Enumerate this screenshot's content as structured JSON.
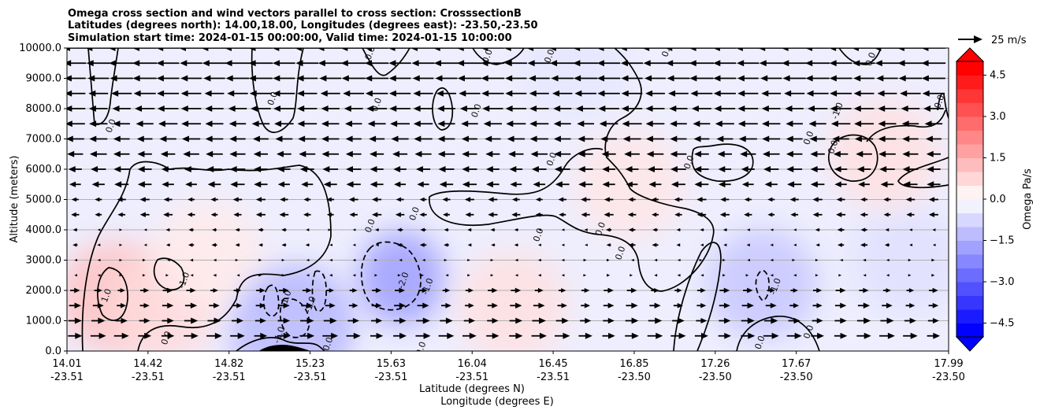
{
  "chart_data": {
    "type": "heatmap",
    "title_lines": [
      "Omega cross section and wind vectors parallel to cross section: CrosssectionB",
      "Latitudes (degrees north): 14.00,18.00, Longitudes (degrees east): -23.50,-23.50",
      "Simulation start time: 2024-01-15 00:00:00, Valid time: 2024-01-15 10:00:00"
    ],
    "xlabel_lines": [
      "Latitude (degrees N)",
      "Longitude (degrees E)"
    ],
    "ylabel": "Altitude (meters)",
    "x_ticks": [
      {
        "lat": "14.01",
        "lon": "-23.51"
      },
      {
        "lat": "14.42",
        "lon": "-23.51"
      },
      {
        "lat": "14.82",
        "lon": "-23.51"
      },
      {
        "lat": "15.23",
        "lon": "-23.51"
      },
      {
        "lat": "15.63",
        "lon": "-23.51"
      },
      {
        "lat": "16.04",
        "lon": "-23.51"
      },
      {
        "lat": "16.45",
        "lon": "-23.51"
      },
      {
        "lat": "16.85",
        "lon": "-23.50"
      },
      {
        "lat": "17.26",
        "lon": "-23.50"
      },
      {
        "lat": "17.67",
        "lon": "-23.50"
      },
      {
        "lat": "17.99",
        "lon": "-23.50"
      }
    ],
    "xlim": [
      14.01,
      17.99
    ],
    "ylim": [
      0,
      10000
    ],
    "y_ticks": [
      0,
      1000,
      2000,
      3000,
      4000,
      5000,
      6000,
      7000,
      8000,
      9000,
      10000
    ],
    "y_tick_labels": [
      "0.0",
      "1000.0",
      "2000.0",
      "3000.0",
      "4000.0",
      "5000.0",
      "6000.0",
      "7000.0",
      "8000.0",
      "9000.0",
      "10000.0"
    ],
    "grid": true,
    "colorbar": {
      "label": "Omega Pa/s",
      "range": [
        -5,
        5
      ],
      "ticks": [
        -4.5,
        -3.0,
        -1.5,
        0.0,
        1.5,
        3.0,
        4.5
      ],
      "tick_labels": [
        "−4.5",
        "−3.0",
        "−1.5",
        "0.0",
        "1.5",
        "3.0",
        "4.5"
      ],
      "extend": "both",
      "colors": {
        "negative": "#0000ff",
        "neutral": "#ffffff",
        "positive": "#ff0000"
      }
    },
    "quiver_key": {
      "label": "25 m/s",
      "speed": 25
    },
    "omega_features": [
      {
        "lat": 14.22,
        "alt": 1800,
        "value": 1.2
      },
      {
        "lat": 14.45,
        "alt": 1500,
        "value": 0.7
      },
      {
        "lat": 14.65,
        "alt": 3200,
        "value": 0.4
      },
      {
        "lat": 15.05,
        "alt": 1000,
        "value": -1.5
      },
      {
        "lat": 15.0,
        "alt": 300,
        "value": -1.2
      },
      {
        "lat": 15.52,
        "alt": 2400,
        "value": -1.9
      },
      {
        "lat": 16.02,
        "alt": 1500,
        "value": 0.6
      },
      {
        "lat": 16.55,
        "alt": 5500,
        "value": 0.5
      },
      {
        "lat": 17.15,
        "alt": 2200,
        "value": -1.1
      },
      {
        "lat": 17.8,
        "alt": 3000,
        "value": -0.6
      },
      {
        "lat": 16.3,
        "alt": 9500,
        "value": -0.5
      },
      {
        "lat": 17.7,
        "alt": 6500,
        "value": 0.6
      }
    ],
    "contour_labels": [
      {
        "lat": 14.2,
        "alt": 1800,
        "text": "1.0"
      },
      {
        "lat": 14.55,
        "alt": 2300,
        "text": "-1.0"
      },
      {
        "lat": 14.47,
        "alt": 400,
        "text": "0.0"
      },
      {
        "lat": 14.22,
        "alt": 7400,
        "text": "0.0"
      },
      {
        "lat": 15.01,
        "alt": 1700,
        "text": "-1.0"
      },
      {
        "lat": 15.12,
        "alt": 1500,
        "text": "-1.0"
      },
      {
        "lat": 14.98,
        "alt": 500,
        "text": "-1.0"
      },
      {
        "lat": 15.2,
        "alt": 200,
        "text": "0.0"
      },
      {
        "lat": 15.54,
        "alt": 2300,
        "text": "-2.0"
      },
      {
        "lat": 15.65,
        "alt": 2100,
        "text": "-1.0"
      },
      {
        "lat": 15.39,
        "alt": 4100,
        "text": "0.0"
      },
      {
        "lat": 15.59,
        "alt": 4500,
        "text": "0.0"
      },
      {
        "lat": 15.62,
        "alt": 50,
        "text": "0.0"
      },
      {
        "lat": 15.39,
        "alt": 9800,
        "text": "0.0"
      },
      {
        "lat": 14.95,
        "alt": 8300,
        "text": "0.0"
      },
      {
        "lat": 15.42,
        "alt": 8100,
        "text": "0.0"
      },
      {
        "lat": 15.87,
        "alt": 7900,
        "text": "0.0"
      },
      {
        "lat": 15.92,
        "alt": 9700,
        "text": "0.0"
      },
      {
        "lat": 16.2,
        "alt": 9700,
        "text": "0.0"
      },
      {
        "lat": 16.21,
        "alt": 6300,
        "text": "0.0"
      },
      {
        "lat": 16.15,
        "alt": 3800,
        "text": "0.0"
      },
      {
        "lat": 16.43,
        "alt": 4000,
        "text": "0.0"
      },
      {
        "lat": 16.52,
        "alt": 3200,
        "text": "0.0"
      },
      {
        "lat": 16.73,
        "alt": 9900,
        "text": "0.0"
      },
      {
        "lat": 16.83,
        "alt": 6200,
        "text": "0.0"
      },
      {
        "lat": 17.15,
        "alt": 250,
        "text": "0.0"
      },
      {
        "lat": 17.37,
        "alt": 600,
        "text": "0.0"
      },
      {
        "lat": 17.37,
        "alt": 7000,
        "text": "0.0"
      },
      {
        "lat": 17.48,
        "alt": 6700,
        "text": "0.0"
      },
      {
        "lat": 17.5,
        "alt": 7900,
        "text": "-1.0"
      },
      {
        "lat": 17.65,
        "alt": 9600,
        "text": "0.0"
      },
      {
        "lat": 17.96,
        "alt": 8200,
        "text": "0.0"
      },
      {
        "lat": 17.22,
        "alt": 2100,
        "text": "-1.0"
      }
    ]
  }
}
